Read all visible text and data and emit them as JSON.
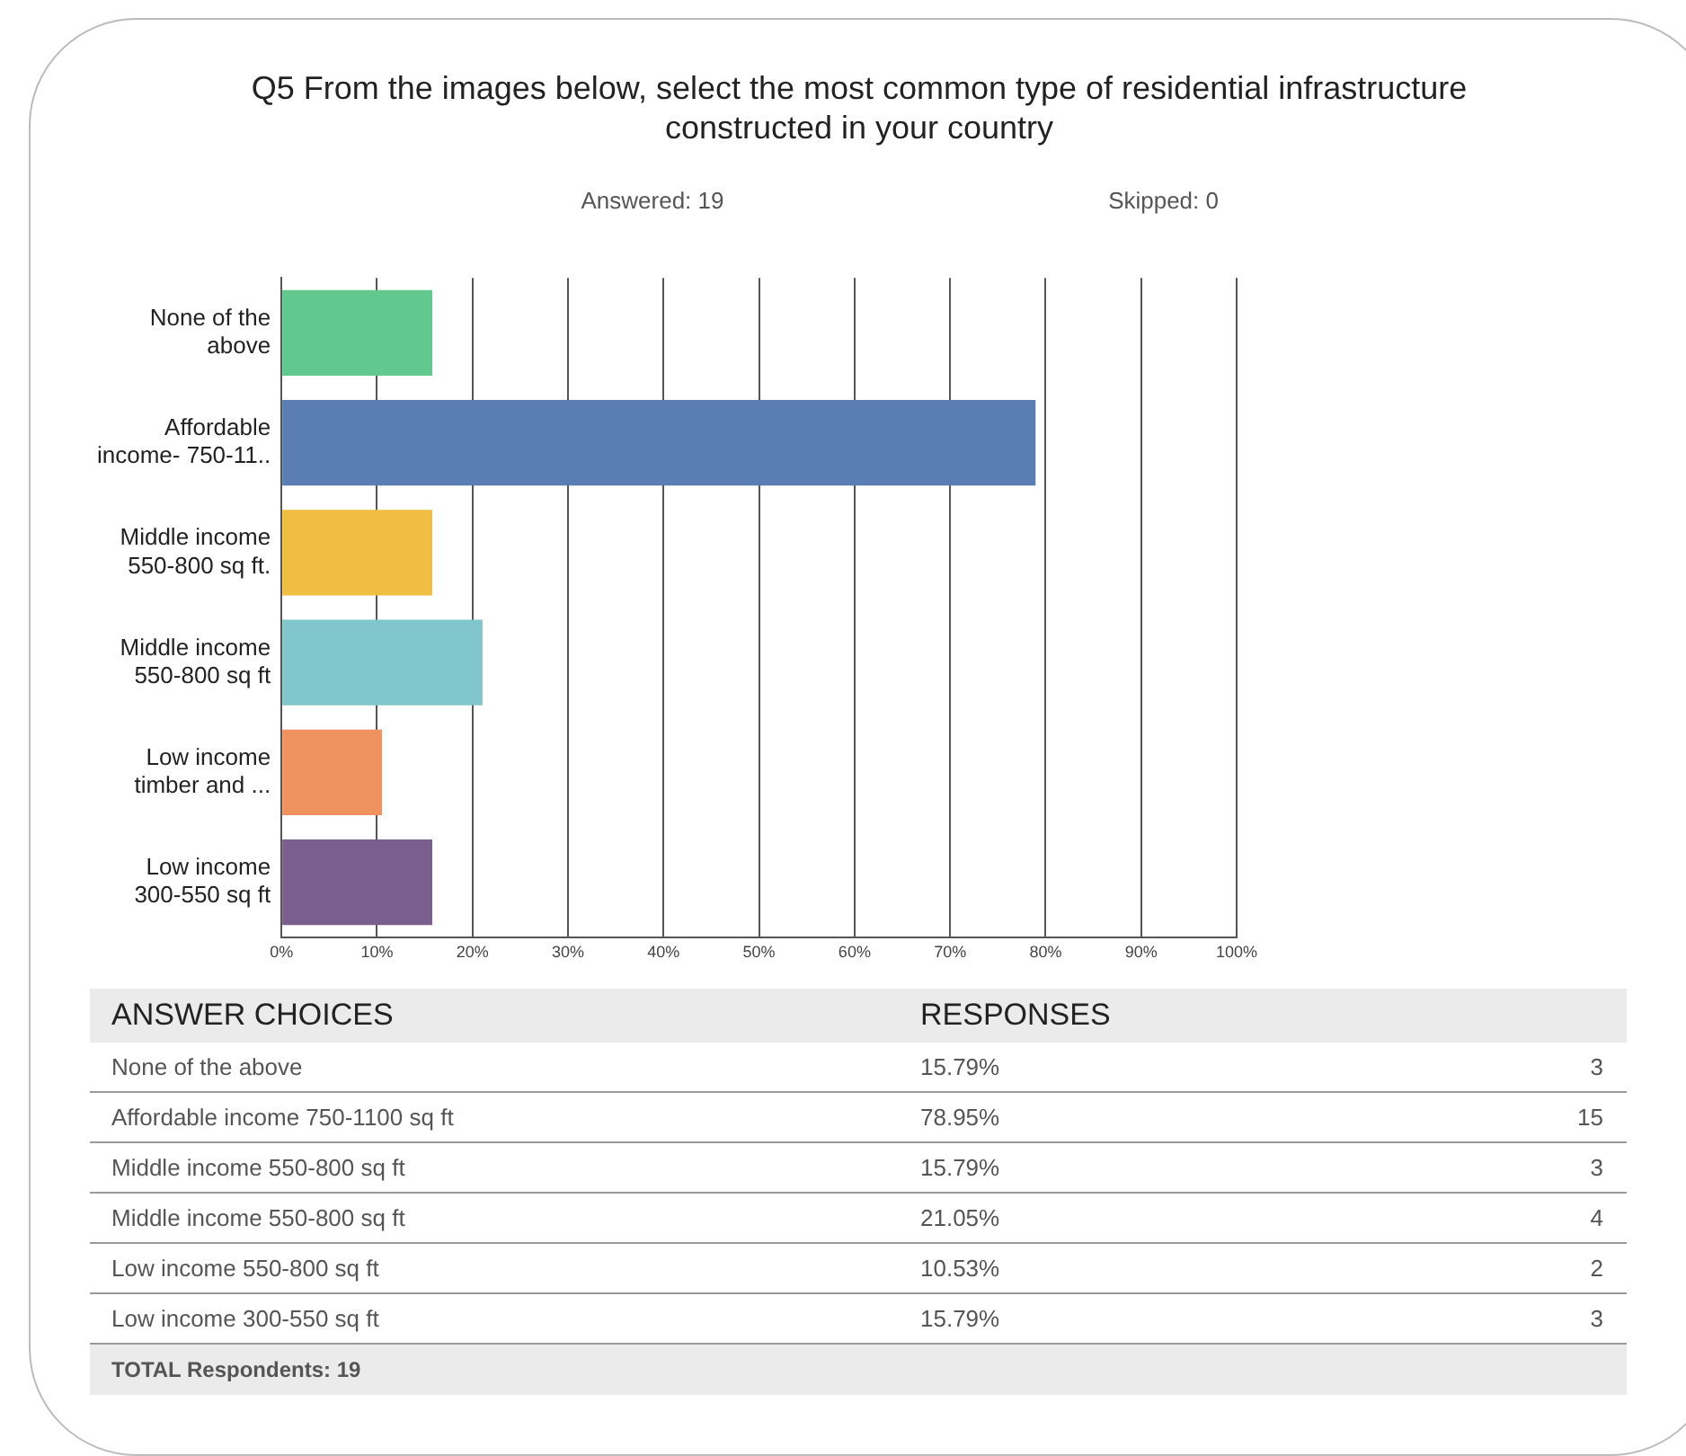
{
  "chart_data": {
    "type": "bar",
    "orientation": "horizontal",
    "title": "Q5 From the images below, select the most common type of residential infrastructure constructed in your country",
    "categories": [
      "None of the above",
      "Affordable income- 750-11..",
      "Middle income 550-800 sq ft.",
      "Middle income 550-800 sq ft",
      "Low income timber and ...",
      "Low income 300-550 sq ft"
    ],
    "values": [
      15.79,
      78.95,
      15.79,
      21.05,
      10.53,
      15.79
    ],
    "colors": [
      "#62c98e",
      "#5a7db3",
      "#f0be42",
      "#80c6ca",
      "#f0925f",
      "#7a5f8e"
    ],
    "xlim": [
      0,
      100
    ],
    "xticks": [
      {
        "value": 0,
        "label": "0%"
      },
      {
        "value": 10,
        "label": "10%"
      },
      {
        "value": 20,
        "label": "20%"
      },
      {
        "value": 30,
        "label": "30%"
      },
      {
        "value": 40,
        "label": "40%"
      },
      {
        "value": 50,
        "label": "50%"
      },
      {
        "value": 60,
        "label": "60%"
      },
      {
        "value": 70,
        "label": "70%"
      },
      {
        "value": 80,
        "label": "80%"
      },
      {
        "value": 90,
        "label": "90%"
      },
      {
        "value": 100,
        "label": "100%"
      }
    ],
    "grid": "x",
    "legend": false,
    "annotations": [
      "Answered: 19",
      "Skipped: 0",
      "ANSWER CHOICES",
      "RESPONSES",
      "None of the above",
      "15.79%",
      "3",
      "Affordable income 750-1100 sq ft",
      "78.95%",
      "15",
      "Middle income 550-800 sq ft",
      "15.79%",
      "3",
      "Middle income 550-800 sq ft",
      "21.05%",
      "4",
      "Low income 550-800 sq ft",
      "10.53%",
      "2",
      "Low income 300-550 sq ft",
      "15.79%",
      "3",
      "TOTAL Respondents: 19"
    ]
  }
}
